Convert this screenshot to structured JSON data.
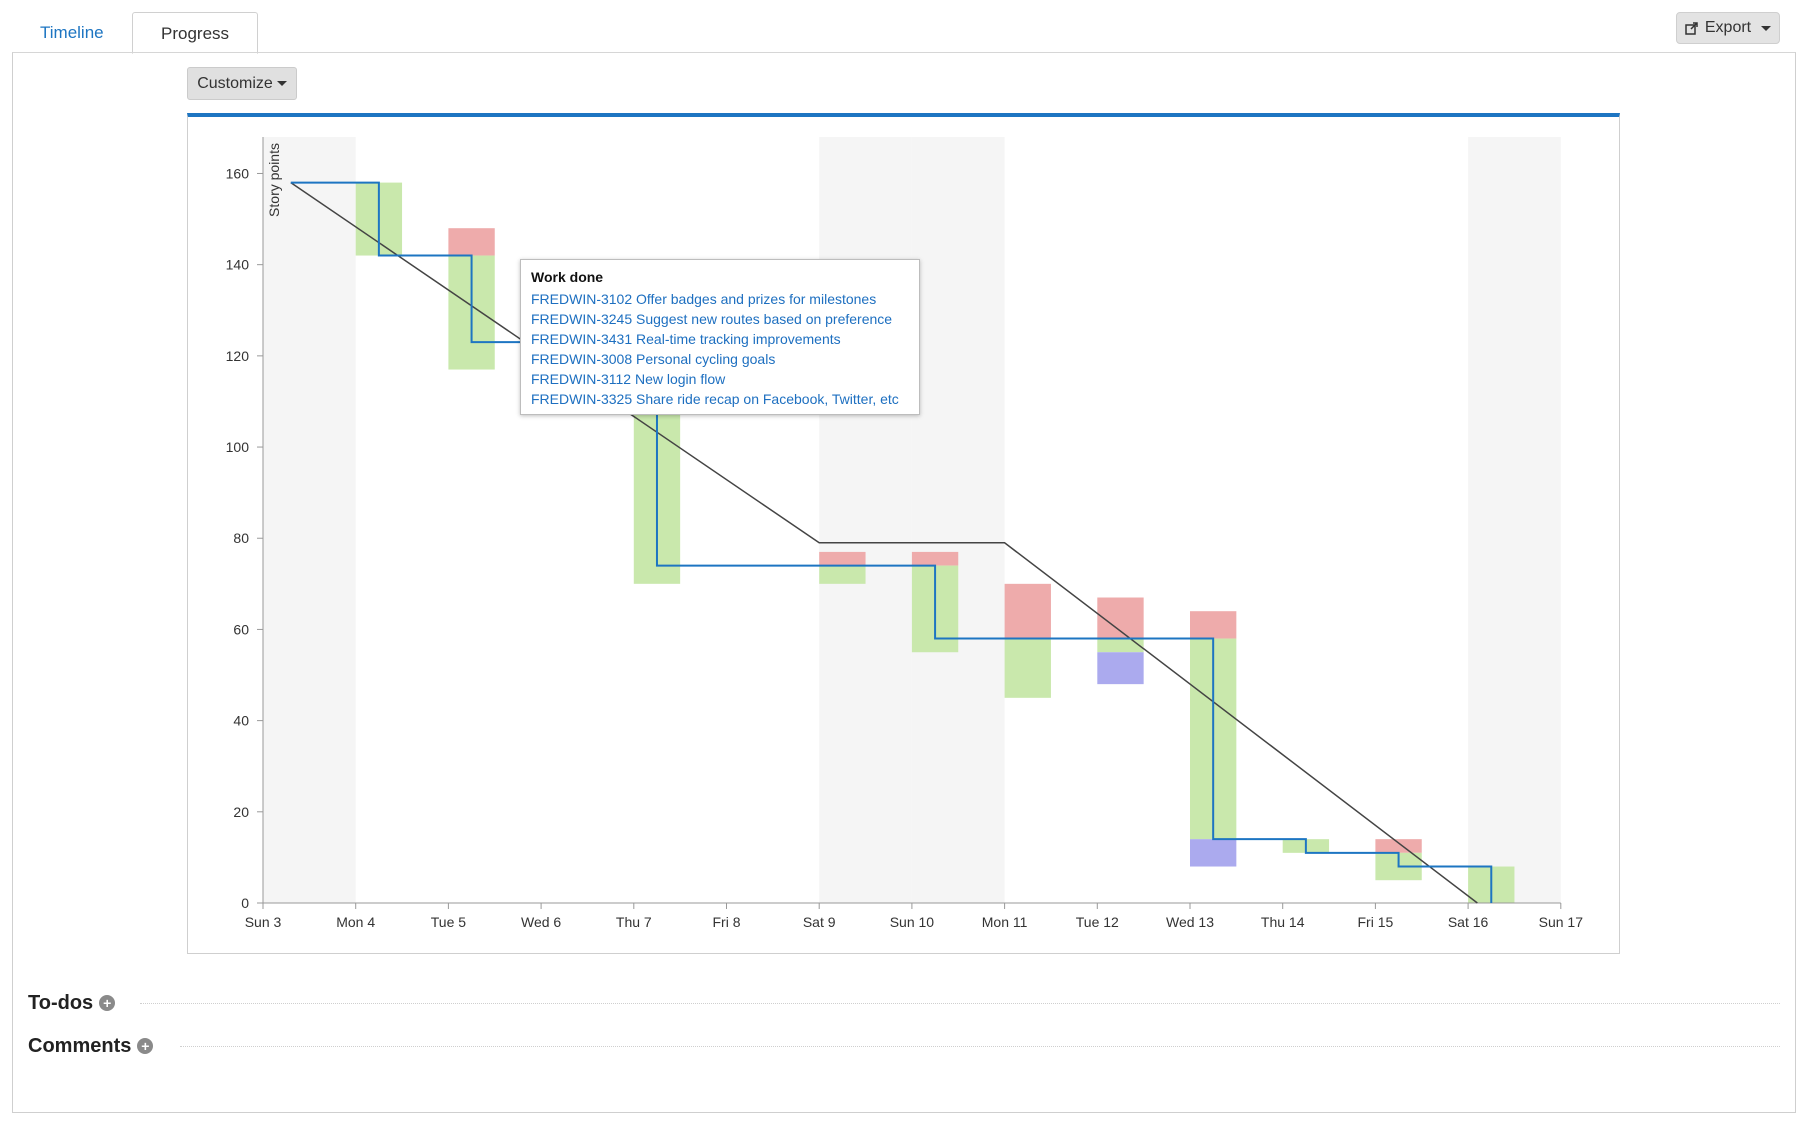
{
  "tabs": [
    {
      "label": "Timeline",
      "active": false
    },
    {
      "label": "Progress",
      "active": true
    }
  ],
  "export_label": "Export",
  "customize_label": "Customize",
  "sections": {
    "todos": "To-dos",
    "comments": "Comments"
  },
  "tooltip": {
    "title": "Work done",
    "items": [
      "FREDWIN-3102 Offer badges and prizes for milestones",
      "FREDWIN-3245 Suggest new routes based on preference",
      "FREDWIN-3431 Real-time tracking improvements",
      "FREDWIN-3008 Personal cycling goals",
      "FREDWIN-3112 New login flow",
      "FREDWIN-3325 Share ride recap on Facebook, Twitter, etc"
    ]
  },
  "colors": {
    "accent": "#1d75c2",
    "work_done": "#c9e8ac",
    "scope_added": "#eeabab",
    "scope_removed": "#abaaee",
    "weekend": "#f5f5f5",
    "guideline": "#444444",
    "remaining": "#1d75c2"
  },
  "chart_data": {
    "type": "burndown",
    "ylabel": "Story points",
    "xlabel": "",
    "ylim": [
      0,
      168
    ],
    "yticks": [
      0,
      20,
      40,
      60,
      80,
      100,
      120,
      140,
      160
    ],
    "x_labels": [
      "Sun 3",
      "Mon 4",
      "Tue 5",
      "Wed 6",
      "Thu 7",
      "Fri 8",
      "Sat 9",
      "Sun 10",
      "Mon 11",
      "Tue 12",
      "Wed 13",
      "Thu 14",
      "Fri 15",
      "Sat 16",
      "Sun 17"
    ],
    "weekend_days": [
      "Sun 3",
      "Sat 9",
      "Sun 10",
      "Sat 16"
    ],
    "guideline": [
      {
        "x": 0.3,
        "y": 158
      },
      {
        "x": 6.0,
        "y": 79
      },
      {
        "x": 8.0,
        "y": 79
      },
      {
        "x": 13.1,
        "y": 0
      }
    ],
    "remaining": [
      {
        "x": 0.3,
        "y": 158
      },
      {
        "x": 1.25,
        "y": 158
      },
      {
        "x": 1.25,
        "y": 142
      },
      {
        "x": 2.25,
        "y": 142
      },
      {
        "x": 2.25,
        "y": 123
      },
      {
        "x": 2.8,
        "y": 123
      },
      {
        "x": 4.25,
        "y": 108
      },
      {
        "x": 4.25,
        "y": 74
      },
      {
        "x": 7.25,
        "y": 74
      },
      {
        "x": 7.25,
        "y": 58
      },
      {
        "x": 10.25,
        "y": 58
      },
      {
        "x": 10.25,
        "y": 14
      },
      {
        "x": 11.25,
        "y": 14
      },
      {
        "x": 11.25,
        "y": 11
      },
      {
        "x": 12.25,
        "y": 11
      },
      {
        "x": 12.25,
        "y": 8
      },
      {
        "x": 13.25,
        "y": 8
      },
      {
        "x": 13.25,
        "y": 0
      }
    ],
    "bars": [
      {
        "day": 1,
        "kind": "work_done",
        "from": 142,
        "to": 158
      },
      {
        "day": 2,
        "kind": "scope_added",
        "from": 142,
        "to": 148
      },
      {
        "day": 2,
        "kind": "work_done",
        "from": 117,
        "to": 142
      },
      {
        "day": 4,
        "kind": "work_done",
        "from": 70,
        "to": 108
      },
      {
        "day": 6,
        "kind": "scope_added",
        "from": 74,
        "to": 77
      },
      {
        "day": 6,
        "kind": "work_done",
        "from": 70,
        "to": 74
      },
      {
        "day": 7,
        "kind": "scope_added",
        "from": 74,
        "to": 77
      },
      {
        "day": 7,
        "kind": "work_done",
        "from": 55,
        "to": 74
      },
      {
        "day": 8,
        "kind": "scope_added",
        "from": 58,
        "to": 70
      },
      {
        "day": 8,
        "kind": "work_done",
        "from": 45,
        "to": 58
      },
      {
        "day": 9,
        "kind": "scope_added",
        "from": 58,
        "to": 67
      },
      {
        "day": 9,
        "kind": "work_done",
        "from": 55,
        "to": 58
      },
      {
        "day": 9,
        "kind": "scope_removed",
        "from": 48,
        "to": 55
      },
      {
        "day": 10,
        "kind": "scope_added",
        "from": 58,
        "to": 64
      },
      {
        "day": 10,
        "kind": "work_done",
        "from": 14,
        "to": 58
      },
      {
        "day": 10,
        "kind": "scope_removed",
        "from": 8,
        "to": 14
      },
      {
        "day": 11,
        "kind": "work_done",
        "from": 11,
        "to": 14
      },
      {
        "day": 12,
        "kind": "scope_added",
        "from": 11,
        "to": 14
      },
      {
        "day": 12,
        "kind": "work_done",
        "from": 5,
        "to": 11
      },
      {
        "day": 13,
        "kind": "work_done",
        "from": 0,
        "to": 8
      }
    ]
  }
}
